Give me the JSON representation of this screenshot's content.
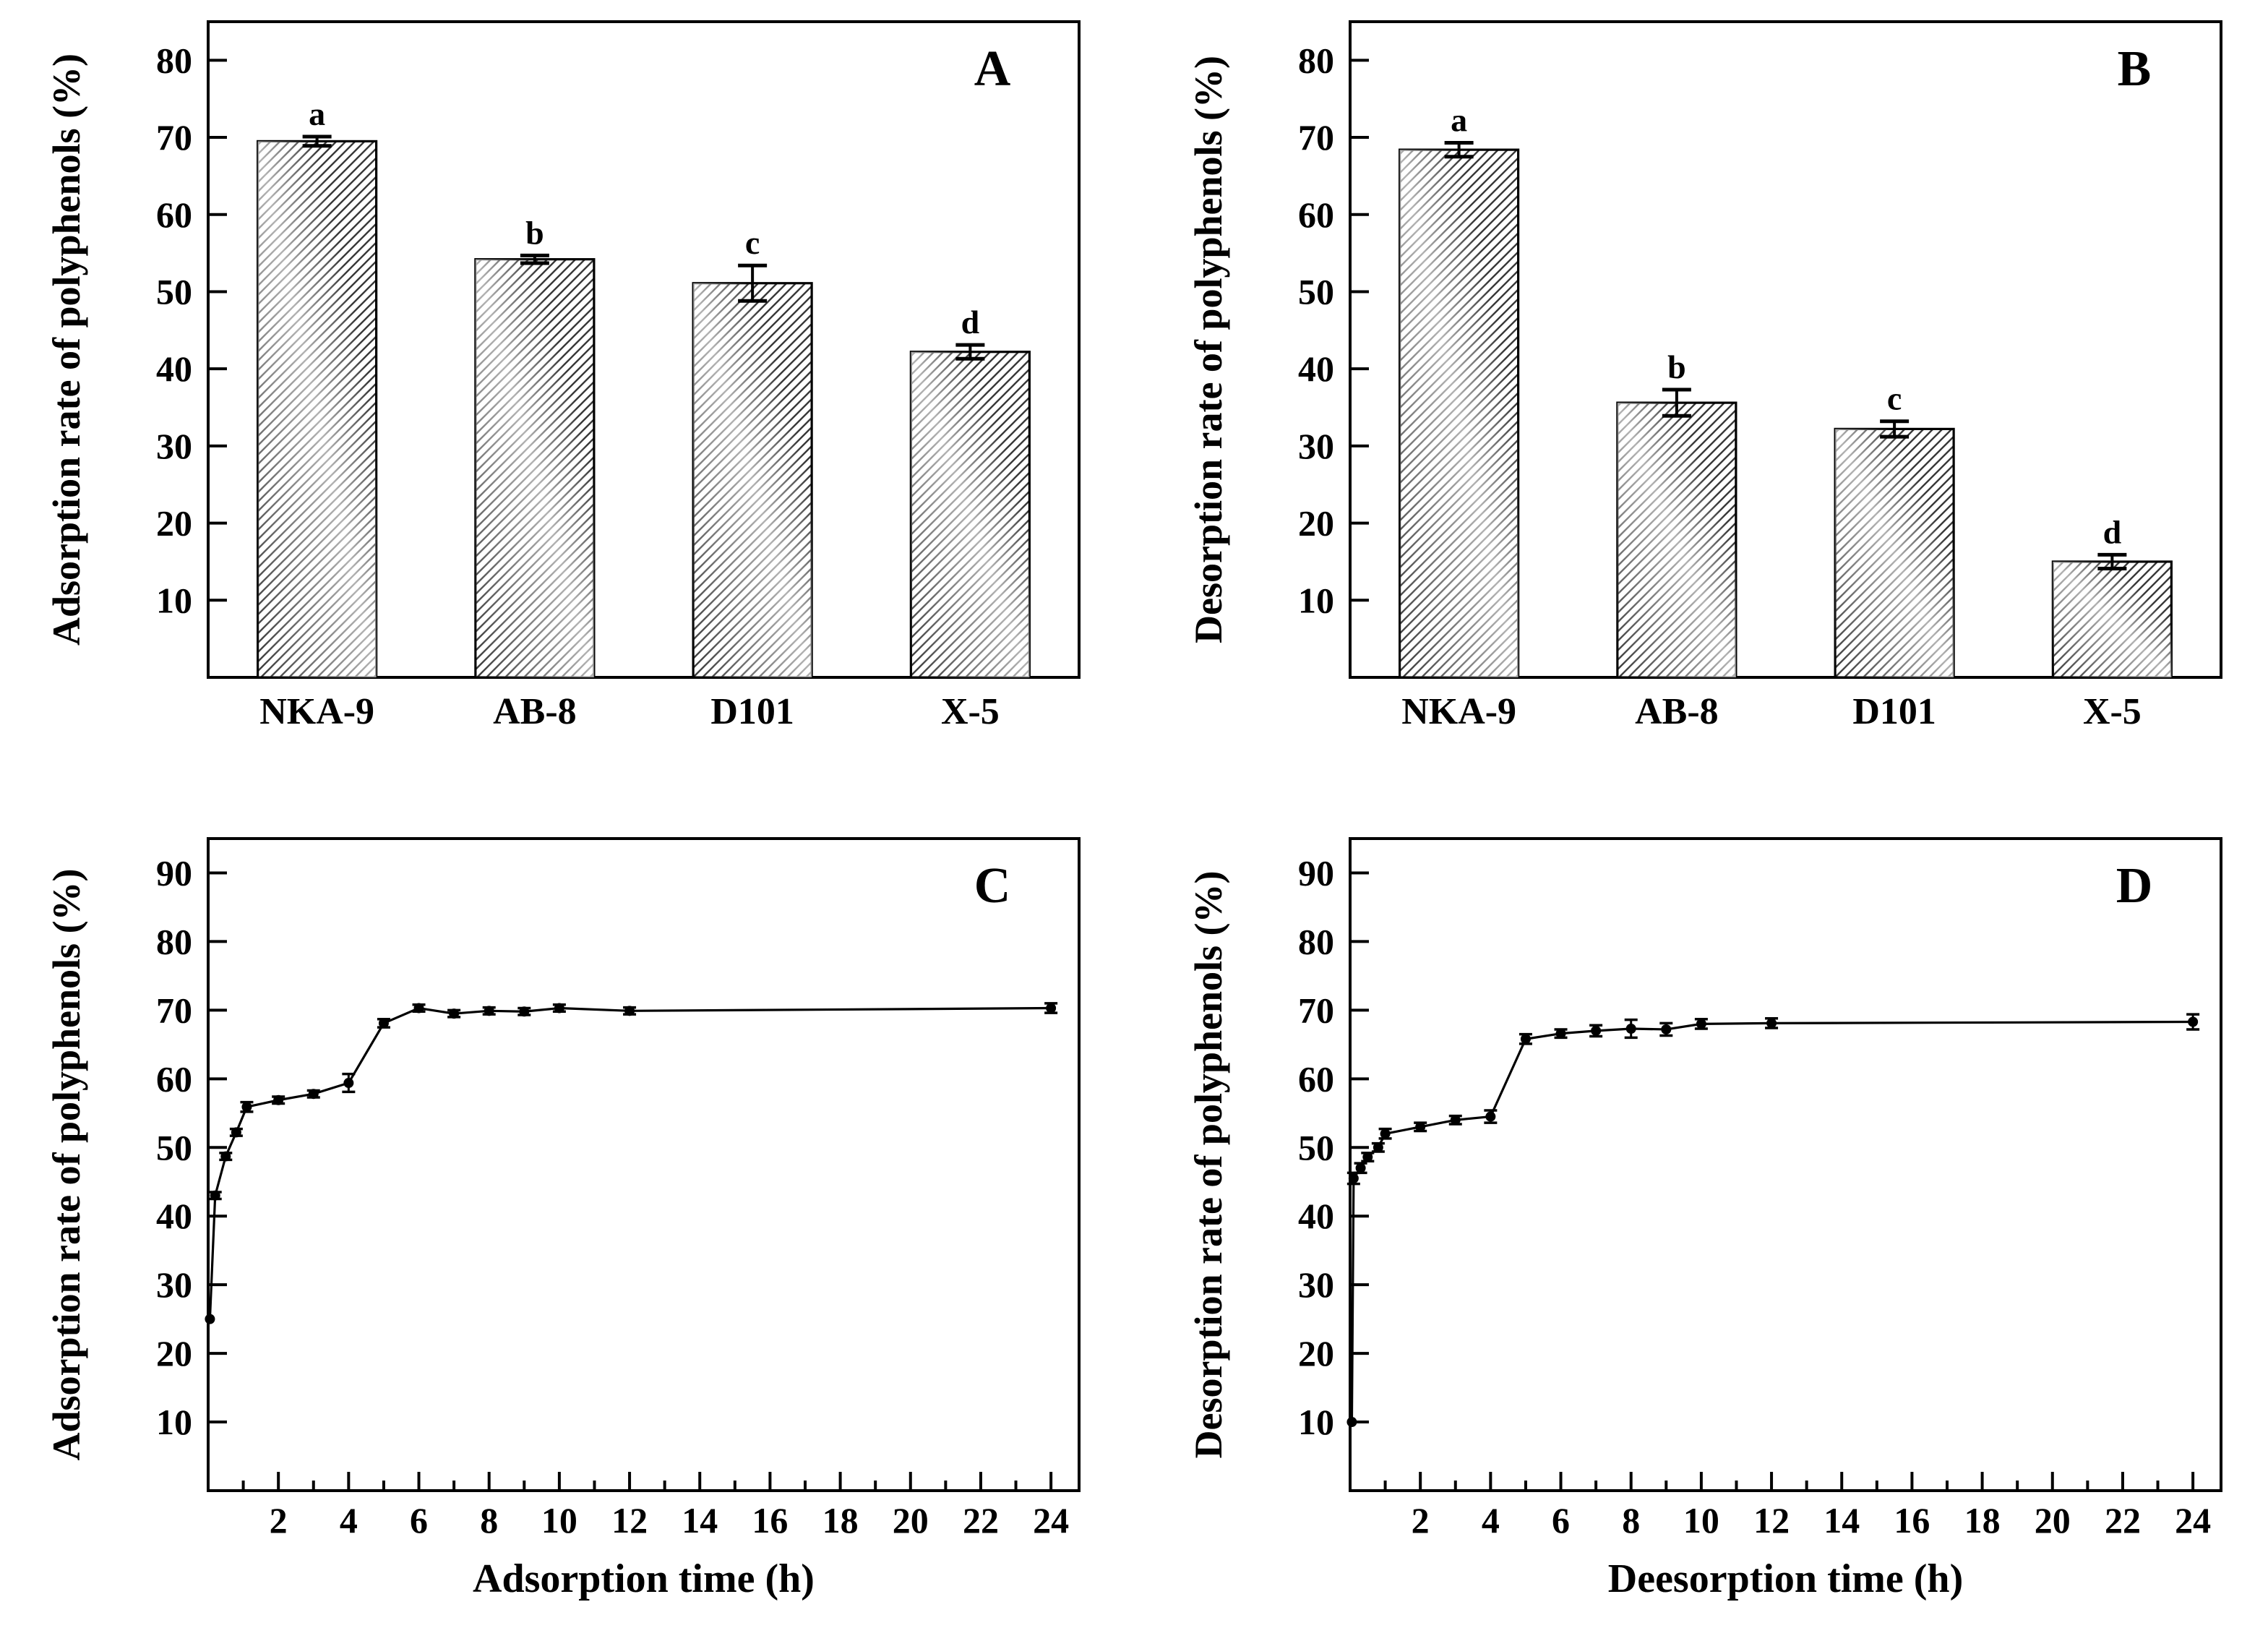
{
  "figure": {
    "background": "#ffffff",
    "ink_color": "#000000",
    "hatch_color": "#383838",
    "bar_fill": "#ffffff"
  },
  "chart_data": [
    {
      "type": "bar",
      "panel_label": "A",
      "ylabel": "Adsorption rate of polyphenols (%)",
      "xlabel": "",
      "categories": [
        "NKA-9",
        "AB-8",
        "D101",
        "X-5"
      ],
      "values": [
        69.5,
        54.2,
        51.1,
        42.2
      ],
      "errors": [
        0.6,
        0.5,
        2.3,
        0.9
      ],
      "sig_letters": [
        "a",
        "b",
        "c",
        "d"
      ],
      "yticks": [
        10,
        20,
        30,
        40,
        50,
        60,
        70,
        80
      ],
      "ylim": [
        0,
        85
      ],
      "grid": false,
      "legend": "none",
      "bar_style": "diagonal-hatch"
    },
    {
      "type": "bar",
      "panel_label": "B",
      "ylabel": "Desorption rate of polyphenols (%)",
      "xlabel": "",
      "categories": [
        "NKA-9",
        "AB-8",
        "D101",
        "X-5"
      ],
      "values": [
        68.4,
        35.6,
        32.2,
        15.0
      ],
      "errors": [
        0.9,
        1.7,
        1.0,
        0.9
      ],
      "sig_letters": [
        "a",
        "b",
        "c",
        "d"
      ],
      "yticks": [
        10,
        20,
        30,
        40,
        50,
        60,
        70,
        80
      ],
      "ylim": [
        0,
        85
      ],
      "grid": false,
      "legend": "none",
      "bar_style": "diagonal-hatch"
    },
    {
      "type": "line",
      "panel_label": "C",
      "ylabel": "Adsorption rate of polyphenols (%)",
      "xlabel": "Adsorption time (h)",
      "x": [
        0.05,
        0.2,
        0.5,
        0.8,
        1.1,
        2,
        3,
        4,
        5,
        6,
        7,
        8,
        9,
        10,
        12,
        24
      ],
      "y": [
        25,
        43,
        48.7,
        52.2,
        55.9,
        56.9,
        57.8,
        59.4,
        68.1,
        70.3,
        69.5,
        69.9,
        69.8,
        70.3,
        69.9,
        70.3
      ],
      "yerr": [
        0,
        0.5,
        0.5,
        0.5,
        0.7,
        0.5,
        0.5,
        1.3,
        0.6,
        0.5,
        0.5,
        0.5,
        0.5,
        0.5,
        0.5,
        0.7
      ],
      "xticks": [
        2,
        4,
        6,
        8,
        10,
        12,
        14,
        16,
        18,
        20,
        22,
        24
      ],
      "yticks": [
        10,
        20,
        30,
        40,
        50,
        60,
        70,
        80,
        90
      ],
      "xlim": [
        0,
        24.8
      ],
      "ylim": [
        0,
        95
      ],
      "grid": false,
      "legend": "none",
      "marker": "filled-circle",
      "line_color": "#000000"
    },
    {
      "type": "line",
      "panel_label": "D",
      "ylabel": "Desorption rate of polyphenols (%)",
      "xlabel": "Deesorption time (h)",
      "x": [
        0.05,
        0.1,
        0.3,
        0.5,
        0.8,
        1,
        2,
        3,
        4,
        5,
        6,
        7,
        8,
        9,
        10,
        12,
        24
      ],
      "y": [
        10,
        45.5,
        47.0,
        48.6,
        50.0,
        52.0,
        53.0,
        54.0,
        54.5,
        65.8,
        66.6,
        67.0,
        67.3,
        67.2,
        68.0,
        68.1,
        68.3
      ],
      "yerr": [
        0,
        0.8,
        0.7,
        0.6,
        0.6,
        0.7,
        0.6,
        0.6,
        0.9,
        0.7,
        0.6,
        0.8,
        1.3,
        0.9,
        0.7,
        0.7,
        1.1
      ],
      "xticks": [
        2,
        4,
        6,
        8,
        10,
        12,
        14,
        16,
        18,
        20,
        22,
        24
      ],
      "yticks": [
        10,
        20,
        30,
        40,
        50,
        60,
        70,
        80,
        90
      ],
      "xlim": [
        0,
        24.8
      ],
      "ylim": [
        0,
        95
      ],
      "grid": false,
      "legend": "none",
      "marker": "filled-circle",
      "line_color": "#000000"
    }
  ]
}
